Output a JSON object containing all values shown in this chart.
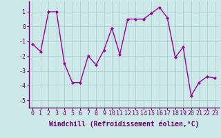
{
  "x": [
    0,
    1,
    2,
    3,
    4,
    5,
    6,
    7,
    8,
    9,
    10,
    11,
    12,
    13,
    14,
    15,
    16,
    17,
    18,
    19,
    20,
    21,
    22,
    23
  ],
  "y": [
    -1.2,
    -1.7,
    1.0,
    1.0,
    -2.5,
    -3.8,
    -3.8,
    -2.0,
    -2.6,
    -1.6,
    -0.1,
    -1.9,
    0.5,
    0.5,
    0.5,
    0.9,
    1.3,
    0.6,
    -2.1,
    -1.4,
    -4.7,
    -3.8,
    -3.4,
    -3.5
  ],
  "line_color": "#990099",
  "marker": "D",
  "marker_size": 2.0,
  "linewidth": 1.0,
  "xlabel": "Windchill (Refroidissement éolien,°C)",
  "xlabel_fontsize": 7.0,
  "xlim": [
    -0.5,
    23.5
  ],
  "ylim": [
    -5.5,
    1.7
  ],
  "yticks": [
    -5,
    -4,
    -3,
    -2,
    -1,
    0,
    1
  ],
  "xticks": [
    0,
    1,
    2,
    3,
    4,
    5,
    6,
    7,
    8,
    9,
    10,
    11,
    12,
    13,
    14,
    15,
    16,
    17,
    18,
    19,
    20,
    21,
    22,
    23
  ],
  "bg_color": "#cce8e8",
  "grid_color": "#aacccc",
  "tick_fontsize": 6.0,
  "spine_color": "#660066"
}
